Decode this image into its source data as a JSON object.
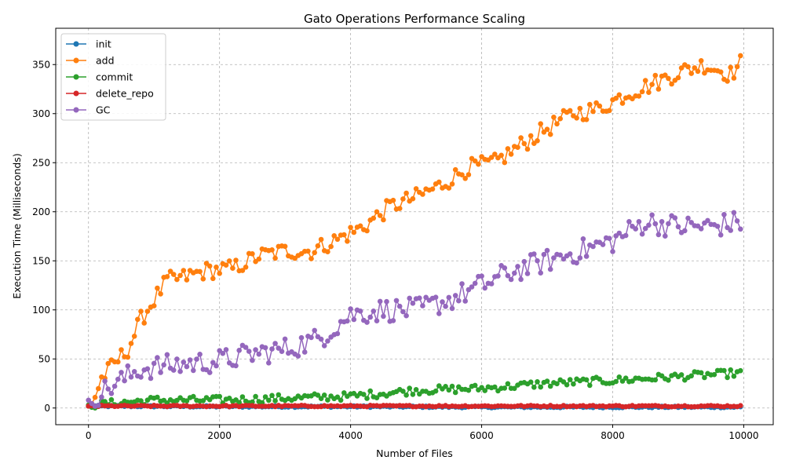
{
  "chart_data": {
    "type": "line",
    "title": "Gato Operations Performance Scaling",
    "xlabel": "Number of Files",
    "ylabel": "Execution Time (Milliseconds)",
    "xlim": [
      -500,
      10450
    ],
    "ylim": [
      -17,
      387
    ],
    "xticks": [
      0,
      2000,
      4000,
      6000,
      8000,
      10000
    ],
    "yticks": [
      0,
      50,
      100,
      150,
      200,
      250,
      300,
      350
    ],
    "grid": true,
    "legend_position": "top-left",
    "x": {
      "start": 0,
      "step": 50,
      "count": 200
    },
    "series": [
      {
        "name": "init",
        "color": "#1f77b4",
        "anchors": [
          [
            0,
            2
          ],
          [
            2000,
            1.5
          ],
          [
            4000,
            1.5
          ],
          [
            6000,
            1
          ],
          [
            8000,
            1
          ],
          [
            10000,
            1
          ]
        ],
        "noise": 0.8
      },
      {
        "name": "add",
        "color": "#ff7f0e",
        "anchors": [
          [
            0,
            2
          ],
          [
            100,
            12
          ],
          [
            200,
            30
          ],
          [
            400,
            45
          ],
          [
            600,
            60
          ],
          [
            800,
            90
          ],
          [
            1000,
            110
          ],
          [
            1200,
            130
          ],
          [
            1400,
            132
          ],
          [
            1800,
            140
          ],
          [
            2200,
            142
          ],
          [
            2600,
            155
          ],
          [
            3000,
            160
          ],
          [
            3400,
            160
          ],
          [
            3800,
            172
          ],
          [
            4200,
            185
          ],
          [
            4600,
            205
          ],
          [
            5000,
            215
          ],
          [
            5400,
            228
          ],
          [
            5800,
            245
          ],
          [
            6200,
            250
          ],
          [
            6600,
            268
          ],
          [
            7000,
            285
          ],
          [
            7400,
            300
          ],
          [
            7800,
            305
          ],
          [
            8200,
            320
          ],
          [
            8600,
            330
          ],
          [
            9000,
            342
          ],
          [
            9400,
            350
          ],
          [
            9800,
            340
          ],
          [
            10000,
            355
          ]
        ],
        "noise": 9
      },
      {
        "name": "commit",
        "color": "#2ca02c",
        "anchors": [
          [
            0,
            3
          ],
          [
            1000,
            8
          ],
          [
            2000,
            8
          ],
          [
            3000,
            10
          ],
          [
            4000,
            12
          ],
          [
            5000,
            18
          ],
          [
            6000,
            20
          ],
          [
            7000,
            25
          ],
          [
            8000,
            28
          ],
          [
            9000,
            32
          ],
          [
            10000,
            36
          ]
        ],
        "noise": 4
      },
      {
        "name": "delete_repo",
        "color": "#d62728",
        "anchors": [
          [
            0,
            2
          ],
          [
            10000,
            2
          ]
        ],
        "noise": 0.8
      },
      {
        "name": "GC",
        "color": "#9467bd",
        "anchors": [
          [
            0,
            8
          ],
          [
            300,
            20
          ],
          [
            800,
            40
          ],
          [
            1500,
            45
          ],
          [
            2000,
            48
          ],
          [
            2500,
            55
          ],
          [
            3000,
            60
          ],
          [
            3500,
            70
          ],
          [
            4000,
            95
          ],
          [
            4500,
            100
          ],
          [
            5000,
            100
          ],
          [
            5500,
            110
          ],
          [
            6000,
            125
          ],
          [
            6500,
            140
          ],
          [
            7000,
            150
          ],
          [
            7500,
            160
          ],
          [
            8000,
            170
          ],
          [
            8500,
            190
          ],
          [
            9000,
            185
          ],
          [
            9500,
            185
          ],
          [
            10000,
            190
          ]
        ],
        "noise": 12
      }
    ]
  }
}
